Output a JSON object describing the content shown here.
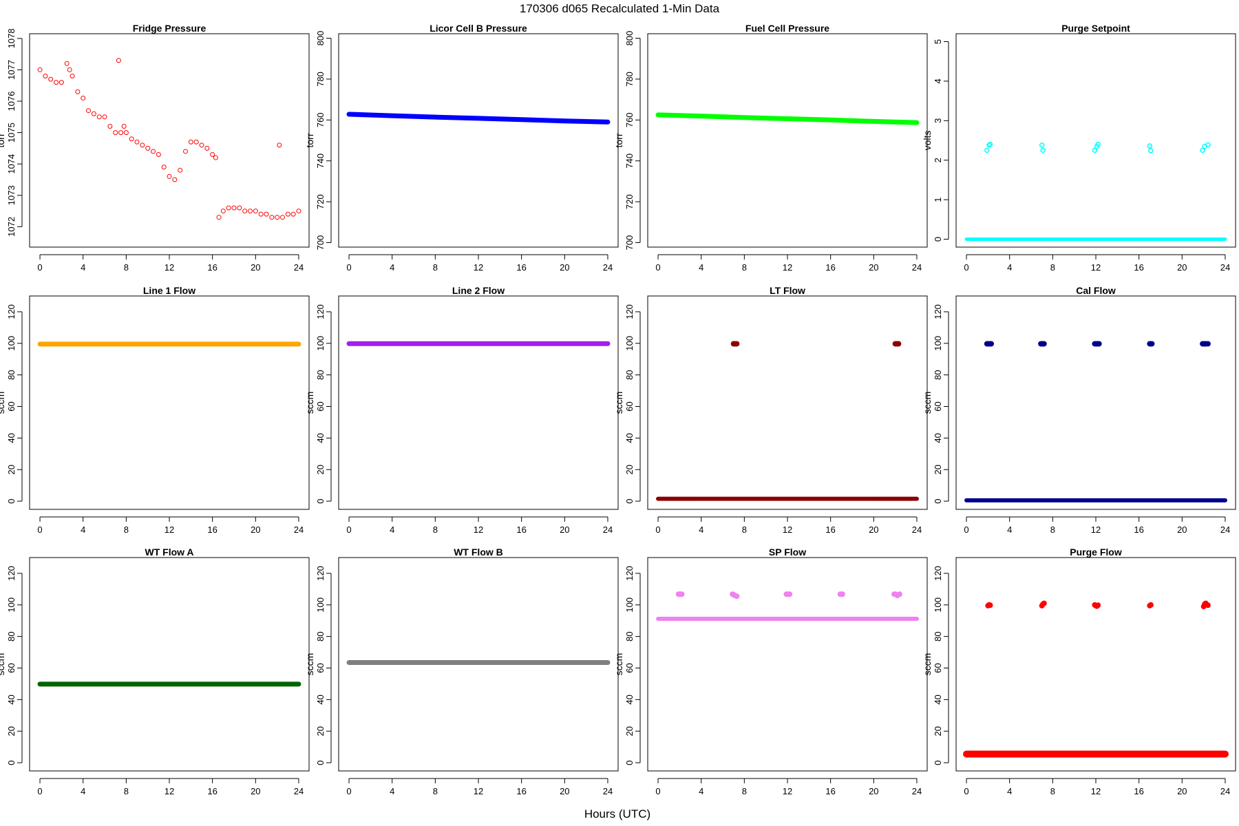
{
  "figure": {
    "title": "170306   d065   Recalculated 1-Min Data",
    "xlabel": "Hours (UTC)"
  },
  "chart_data": [
    {
      "type": "scatter",
      "title": "Fridge Pressure",
      "ylabel": "torr",
      "color": "#ff0000",
      "marker": "open-circle",
      "xlim": [
        -0.96,
        24.96
      ],
      "ylim": [
        1071.35,
        1078.15
      ],
      "xticks": [
        0,
        4,
        8,
        12,
        16,
        20,
        24
      ],
      "yticks": [
        1072,
        1073,
        1074,
        1075,
        1076,
        1077,
        1078
      ],
      "series": [
        {
          "x": [
            0,
            0.5,
            1,
            1.5,
            2,
            2.5,
            2.75,
            3,
            3.5,
            4,
            4.5,
            5,
            5.5,
            6,
            6.5,
            7,
            7.3,
            7.5,
            7.8,
            8,
            8.5,
            9,
            9.5,
            10,
            10.5,
            11,
            11.5,
            12,
            12.5,
            13,
            13.5,
            14,
            14.5,
            15,
            15.5,
            16,
            16.3,
            16.6,
            17,
            17.5,
            18,
            18.5,
            19,
            19.5,
            20,
            20.5,
            21,
            21.5,
            22,
            22.2,
            22.5,
            23,
            23.5,
            24
          ],
          "y": [
            1077.0,
            1076.8,
            1076.7,
            1076.6,
            1076.6,
            1077.2,
            1077.0,
            1076.8,
            1076.3,
            1076.1,
            1075.7,
            1075.6,
            1075.5,
            1075.5,
            1075.2,
            1075.0,
            1077.3,
            1075.0,
            1075.2,
            1075.0,
            1074.8,
            1074.7,
            1074.6,
            1074.5,
            1074.4,
            1074.3,
            1073.9,
            1073.6,
            1073.5,
            1073.8,
            1074.4,
            1074.7,
            1074.7,
            1074.6,
            1074.5,
            1074.3,
            1074.2,
            1072.3,
            1072.5,
            1072.6,
            1072.6,
            1072.6,
            1072.5,
            1072.5,
            1072.5,
            1072.4,
            1072.4,
            1072.3,
            1072.3,
            1074.6,
            1072.3,
            1072.4,
            1072.4,
            1072.5
          ]
        }
      ]
    },
    {
      "type": "scatter",
      "title": "Licor Cell B Pressure",
      "ylabel": "torr",
      "color": "#0000ff",
      "marker": "solid-band",
      "xlim": [
        -0.96,
        24.96
      ],
      "ylim": [
        697.8,
        802.2
      ],
      "xticks": [
        0,
        4,
        8,
        12,
        16,
        20,
        24
      ],
      "yticks": [
        700,
        720,
        740,
        760,
        780,
        800
      ],
      "series": [
        {
          "x": [
            0,
            4,
            8,
            12,
            16,
            20,
            24
          ],
          "y": [
            762.8,
            762.1,
            761.4,
            760.8,
            760.2,
            759.5,
            759.0
          ]
        }
      ]
    },
    {
      "type": "scatter",
      "title": "Fuel Cell Pressure",
      "ylabel": "torr",
      "color": "#00ff00",
      "marker": "solid-band",
      "xlim": [
        -0.96,
        24.96
      ],
      "ylim": [
        697.8,
        802.2
      ],
      "xticks": [
        0,
        4,
        8,
        12,
        16,
        20,
        24
      ],
      "yticks": [
        700,
        720,
        740,
        760,
        780,
        800
      ],
      "series": [
        {
          "x": [
            0,
            4,
            8,
            12,
            16,
            20,
            24
          ],
          "y": [
            762.5,
            761.9,
            761.2,
            760.6,
            760.0,
            759.3,
            758.7
          ]
        }
      ]
    },
    {
      "type": "scatter",
      "title": "Purge Setpoint",
      "ylabel": "volts",
      "color": "#00ffff",
      "marker": "band-and-circles",
      "xlim": [
        -0.96,
        24.96
      ],
      "ylim": [
        -0.2,
        5.2
      ],
      "xticks": [
        0,
        4,
        8,
        12,
        16,
        20,
        24
      ],
      "yticks": [
        0,
        1,
        2,
        3,
        4,
        5
      ],
      "series": [
        {
          "x": [
            0,
            24
          ],
          "y": [
            0,
            0
          ]
        },
        {
          "x": [
            1.9,
            2.1,
            2.2,
            7.0,
            7.1,
            11.9,
            12.1,
            12.2,
            17.0,
            17.1,
            21.9,
            22.1,
            22.4
          ],
          "y": [
            2.25,
            2.38,
            2.4,
            2.38,
            2.25,
            2.25,
            2.35,
            2.4,
            2.36,
            2.24,
            2.25,
            2.35,
            2.39
          ]
        }
      ]
    },
    {
      "type": "scatter",
      "title": "Line 1 Flow",
      "ylabel": "sccm",
      "color": "#ffa500",
      "marker": "solid-band",
      "xlim": [
        -0.96,
        24.96
      ],
      "ylim": [
        -5.2,
        130
      ],
      "xticks": [
        0,
        4,
        8,
        12,
        16,
        20,
        24
      ],
      "yticks": [
        0,
        20,
        40,
        60,
        80,
        100,
        120
      ],
      "series": [
        {
          "x": [
            0,
            24
          ],
          "y": [
            99.5,
            99.5
          ]
        }
      ]
    },
    {
      "type": "scatter",
      "title": "Line 2 Flow",
      "ylabel": "sccm",
      "color": "#a020f0",
      "marker": "solid-band",
      "xlim": [
        -0.96,
        24.96
      ],
      "ylim": [
        -5.2,
        130
      ],
      "xticks": [
        0,
        4,
        8,
        12,
        16,
        20,
        24
      ],
      "yticks": [
        0,
        20,
        40,
        60,
        80,
        100,
        120
      ],
      "series": [
        {
          "x": [
            0,
            24
          ],
          "y": [
            99.8,
            99.8
          ]
        }
      ]
    },
    {
      "type": "scatter",
      "title": "LT Flow",
      "ylabel": "sccm",
      "color": "#8b0000",
      "marker": "band-and-clusters",
      "xlim": [
        -0.96,
        24.96
      ],
      "ylim": [
        -5.2,
        130
      ],
      "xticks": [
        0,
        4,
        8,
        12,
        16,
        20,
        24
      ],
      "yticks": [
        0,
        20,
        40,
        60,
        80,
        100,
        120
      ],
      "series": [
        {
          "x": [
            0,
            24
          ],
          "y": [
            1.5,
            1.5
          ]
        },
        {
          "x": [
            7.0,
            7.1,
            7.2,
            7.3,
            22.0,
            22.1,
            22.2,
            22.3
          ],
          "y": [
            99.7,
            99.7,
            99.7,
            99.7,
            99.7,
            99.7,
            99.7,
            99.7
          ]
        }
      ]
    },
    {
      "type": "scatter",
      "title": "Cal Flow",
      "ylabel": "sccm",
      "color": "#00008b",
      "marker": "band-and-clusters",
      "xlim": [
        -0.96,
        24.96
      ],
      "ylim": [
        -5.2,
        130
      ],
      "xticks": [
        0,
        4,
        8,
        12,
        16,
        20,
        24
      ],
      "yticks": [
        0,
        20,
        40,
        60,
        80,
        100,
        120
      ],
      "series": [
        {
          "x": [
            0,
            24
          ],
          "y": [
            0.5,
            0.5
          ]
        },
        {
          "x": [
            1.9,
            2.0,
            2.1,
            2.2,
            2.3,
            6.9,
            7.0,
            7.1,
            7.2,
            11.9,
            12.0,
            12.1,
            12.2,
            12.3,
            17.0,
            17.1,
            17.2,
            21.9,
            22.0,
            22.1,
            22.2,
            22.4
          ],
          "y": [
            99.7,
            99.7,
            99.7,
            99.7,
            99.7,
            99.7,
            99.7,
            99.7,
            99.7,
            99.7,
            99.7,
            99.7,
            99.7,
            99.7,
            99.7,
            99.7,
            99.7,
            99.7,
            99.7,
            99.7,
            99.7,
            99.7
          ]
        }
      ]
    },
    {
      "type": "scatter",
      "title": "WT Flow A",
      "ylabel": "sccm",
      "color": "#006400",
      "marker": "solid-band",
      "xlim": [
        -0.96,
        24.96
      ],
      "ylim": [
        -5.2,
        130
      ],
      "xticks": [
        0,
        4,
        8,
        12,
        16,
        20,
        24
      ],
      "yticks": [
        0,
        20,
        40,
        60,
        80,
        100,
        120
      ],
      "series": [
        {
          "x": [
            0,
            24
          ],
          "y": [
            49.8,
            49.8
          ]
        }
      ]
    },
    {
      "type": "scatter",
      "title": "WT Flow B",
      "ylabel": "sccm",
      "color": "#7f7f7f",
      "marker": "solid-band",
      "xlim": [
        -0.96,
        24.96
      ],
      "ylim": [
        -5.2,
        130
      ],
      "xticks": [
        0,
        4,
        8,
        12,
        16,
        20,
        24
      ],
      "yticks": [
        0,
        20,
        40,
        60,
        80,
        100,
        120
      ],
      "series": [
        {
          "x": [
            0,
            24
          ],
          "y": [
            63.5,
            63.5
          ]
        }
      ]
    },
    {
      "type": "scatter",
      "title": "SP Flow",
      "ylabel": "sccm",
      "color": "#ee82ee",
      "marker": "band-and-clusters",
      "xlim": [
        -0.96,
        24.96
      ],
      "ylim": [
        -5.2,
        130
      ],
      "xticks": [
        0,
        4,
        8,
        12,
        16,
        20,
        24
      ],
      "yticks": [
        0,
        20,
        40,
        60,
        80,
        100,
        120
      ],
      "series": [
        {
          "x": [
            0,
            24
          ],
          "y": [
            91.2,
            91.2
          ]
        },
        {
          "x": [
            1.9,
            2.0,
            2.1,
            2.2,
            6.9,
            7.0,
            7.1,
            7.3,
            11.9,
            12.0,
            12.1,
            12.2,
            16.9,
            17.0,
            17.1,
            21.9,
            22.0,
            22.1,
            22.2,
            22.4
          ],
          "y": [
            106.8,
            106.8,
            106.8,
            106.8,
            106.8,
            106.5,
            106.0,
            105.5,
            106.8,
            106.8,
            106.8,
            106.8,
            106.8,
            106.8,
            106.8,
            106.8,
            106.8,
            106.5,
            106.0,
            106.8
          ]
        }
      ]
    },
    {
      "type": "scatter",
      "title": "Purge Flow",
      "ylabel": "sccm",
      "color": "#ff0000",
      "marker": "noisy-band-and-clusters",
      "xlim": [
        -0.96,
        24.96
      ],
      "ylim": [
        -5.2,
        130
      ],
      "xticks": [
        0,
        4,
        8,
        12,
        16,
        20,
        24
      ],
      "yticks": [
        0,
        20,
        40,
        60,
        80,
        100,
        120
      ],
      "series": [
        {
          "x": [
            0,
            4,
            8,
            12,
            16,
            20,
            24
          ],
          "y": [
            5.5,
            5.5,
            5.5,
            5.5,
            5.5,
            5.5,
            5.5
          ]
        },
        {
          "x": [
            2.0,
            2.1,
            2.2,
            7.0,
            7.1,
            7.2,
            11.9,
            12.0,
            12.1,
            12.2,
            17.0,
            17.1,
            22.0,
            22.1,
            22.2,
            22.4
          ],
          "y": [
            99.5,
            100.0,
            99.8,
            99.5,
            100.5,
            101.0,
            100.0,
            99.5,
            99.2,
            99.8,
            99.5,
            100.0,
            99.0,
            100.5,
            101.0,
            99.8
          ]
        }
      ]
    }
  ]
}
